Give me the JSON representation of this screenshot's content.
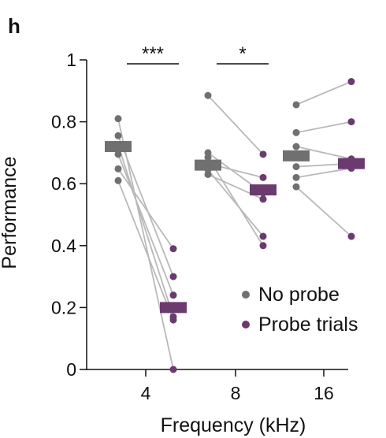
{
  "panel_label": "h",
  "chart_data": {
    "type": "scatter",
    "title": "",
    "xlabel": "Frequency (kHz)",
    "ylabel": "Performance",
    "ylim": [
      0,
      1
    ],
    "yticks": [
      0,
      0.2,
      0.4,
      0.6,
      0.8,
      1
    ],
    "ytick_labels": [
      "0",
      "0.2",
      "0.4",
      "0.6",
      "0.8",
      "1"
    ],
    "categories": [
      "4",
      "8",
      "16"
    ],
    "grid": false,
    "legend_position": "bottom-right",
    "series": [
      {
        "name": "No probe",
        "color": "#707070",
        "points": [
          [
            0.81,
            0.755,
            0.725,
            0.695,
            0.648,
            0.61
          ],
          [
            0.885,
            0.7,
            0.685,
            0.665,
            0.645,
            0.63
          ],
          [
            0.855,
            0.765,
            0.72,
            0.655,
            0.62,
            0.59
          ]
        ],
        "means": [
          0.72,
          0.66,
          0.69
        ]
      },
      {
        "name": "Probe trials",
        "color": "#6b3a6e",
        "points": [
          [
            0.39,
            0.3,
            0.24,
            0.17,
            0.16,
            0.0
          ],
          [
            0.695,
            0.62,
            0.55,
            0.43,
            0.4,
            0.57
          ],
          [
            0.93,
            0.8,
            0.65,
            0.43,
            0.68,
            0.665
          ]
        ],
        "means": [
          0.2,
          0.58,
          0.665
        ]
      }
    ],
    "pairs": [
      [
        [
          0.81,
          0.0
        ],
        [
          0.755,
          0.3
        ],
        [
          0.725,
          0.17
        ],
        [
          0.695,
          0.24
        ],
        [
          0.648,
          0.39
        ],
        [
          0.61,
          0.16
        ]
      ],
      [
        [
          0.885,
          0.695
        ],
        [
          0.7,
          0.57
        ],
        [
          0.685,
          0.4
        ],
        [
          0.665,
          0.62
        ],
        [
          0.645,
          0.43
        ],
        [
          0.63,
          0.55
        ]
      ],
      [
        [
          0.855,
          0.93
        ],
        [
          0.765,
          0.8
        ],
        [
          0.72,
          0.68
        ],
        [
          0.655,
          0.665
        ],
        [
          0.62,
          0.65
        ],
        [
          0.59,
          0.43
        ]
      ]
    ],
    "significance": [
      {
        "category": "4",
        "label": "***"
      },
      {
        "category": "8",
        "label": "*"
      }
    ]
  }
}
